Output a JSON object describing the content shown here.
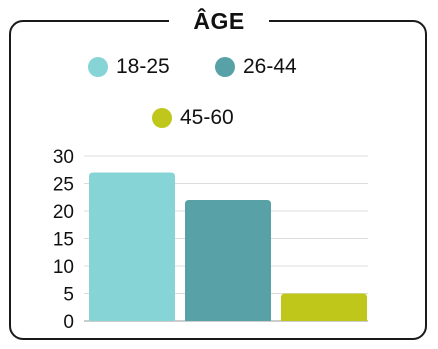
{
  "chart_data": {
    "type": "bar",
    "title": "ÂGE",
    "categories": [
      "18-25",
      "26-44",
      "45-60"
    ],
    "values": [
      27,
      22,
      5
    ],
    "colors": [
      "#86d4d6",
      "#58a1a6",
      "#bfc71b"
    ],
    "ylim": [
      0,
      30
    ],
    "yticks": [
      "0",
      "5",
      "10",
      "15",
      "20",
      "25",
      "30"
    ],
    "grid": true,
    "legend_position": "top"
  }
}
